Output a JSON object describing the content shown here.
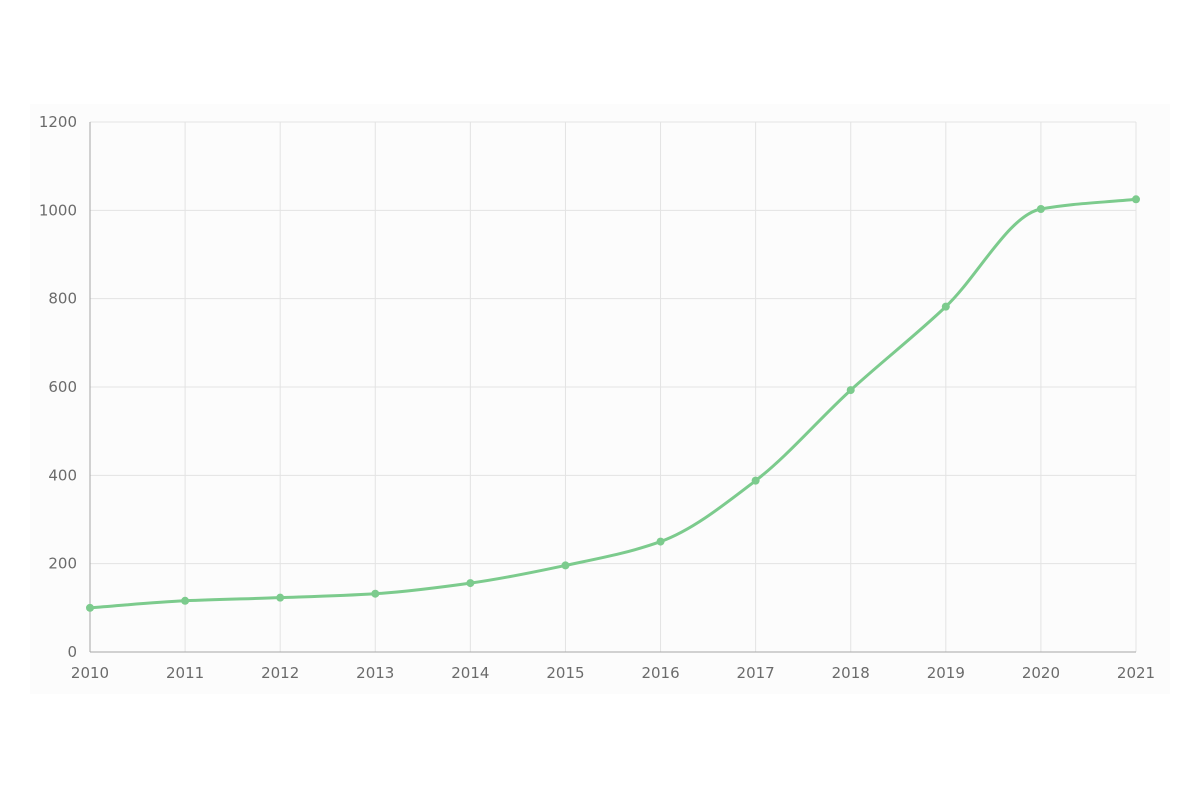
{
  "chart_data": {
    "type": "line",
    "title": "",
    "xlabel": "",
    "ylabel": "",
    "x": [
      "2010",
      "2011",
      "2012",
      "2013",
      "2014",
      "2015",
      "2016",
      "2017",
      "2018",
      "2019",
      "2020",
      "2021"
    ],
    "series": [
      {
        "values": [
          100,
          116,
          123,
          132,
          156,
          196,
          250,
          388,
          593,
          782,
          1003,
          1025
        ]
      }
    ],
    "ylim": [
      0,
      1200
    ],
    "yticks": [
      "0",
      "200",
      "400",
      "600",
      "800",
      "1000",
      "1200"
    ],
    "grid": true,
    "legend": "none",
    "colors": {
      "line": "#7ccb8d",
      "grid": "#e3e3e3",
      "axis": "#a6a6a6",
      "text": "#6b6b6b"
    }
  }
}
